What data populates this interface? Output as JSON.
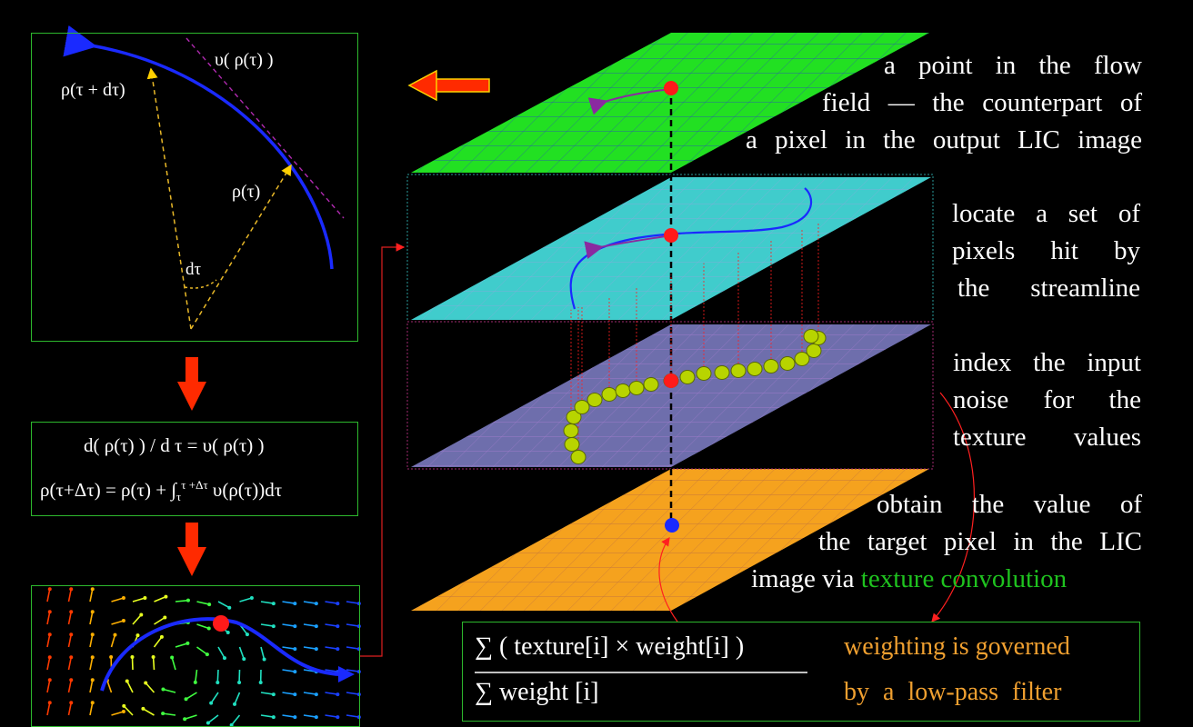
{
  "panel_top": {
    "label_velocity": "υ( ρ(τ) )",
    "label_next": "ρ(τ + dτ)",
    "label_current": "ρ(τ)",
    "label_dtau": "dτ"
  },
  "panel_eq": {
    "line1": "d( ρ(τ) ) / d τ = υ( ρ(τ) )",
    "line2_prefix": "ρ(τ+Δτ) = ρ(τ) + ∫",
    "line2_sub": "τ",
    "line2_sup": "τ +Δτ",
    "line2_suffix": " υ(ρ(τ))dτ"
  },
  "layers": {
    "flow_text": [
      "a point in the flow",
      "field — the counterpart of",
      "a pixel  in the output LIC image"
    ],
    "stream_text": [
      "locate a  set of",
      "pixels  hit  by",
      "the  streamline"
    ],
    "noise_text": [
      "index the input",
      "noise  for  the",
      "texture  values"
    ],
    "output_text_l1": "obtain  the value of",
    "output_text_l2": "the target pixel in the LIC",
    "output_text_l3a": "image  via  ",
    "output_text_l3b": "texture convolution"
  },
  "formula": {
    "numerator": "∑ ( texture[i] × weight[i] )",
    "denominator": "∑   weight [i]",
    "note_l1": "weighting  is governed",
    "note_l2": "by  a  low-pass  filter"
  },
  "colors": {
    "flow_plane": "#1ee01e",
    "stream_plane": "#38c8c8",
    "noise_plane": "#6a6aa8",
    "output_plane": "#f4a020",
    "panel_border": "#2db82d",
    "arrow": "#ff2a00"
  }
}
